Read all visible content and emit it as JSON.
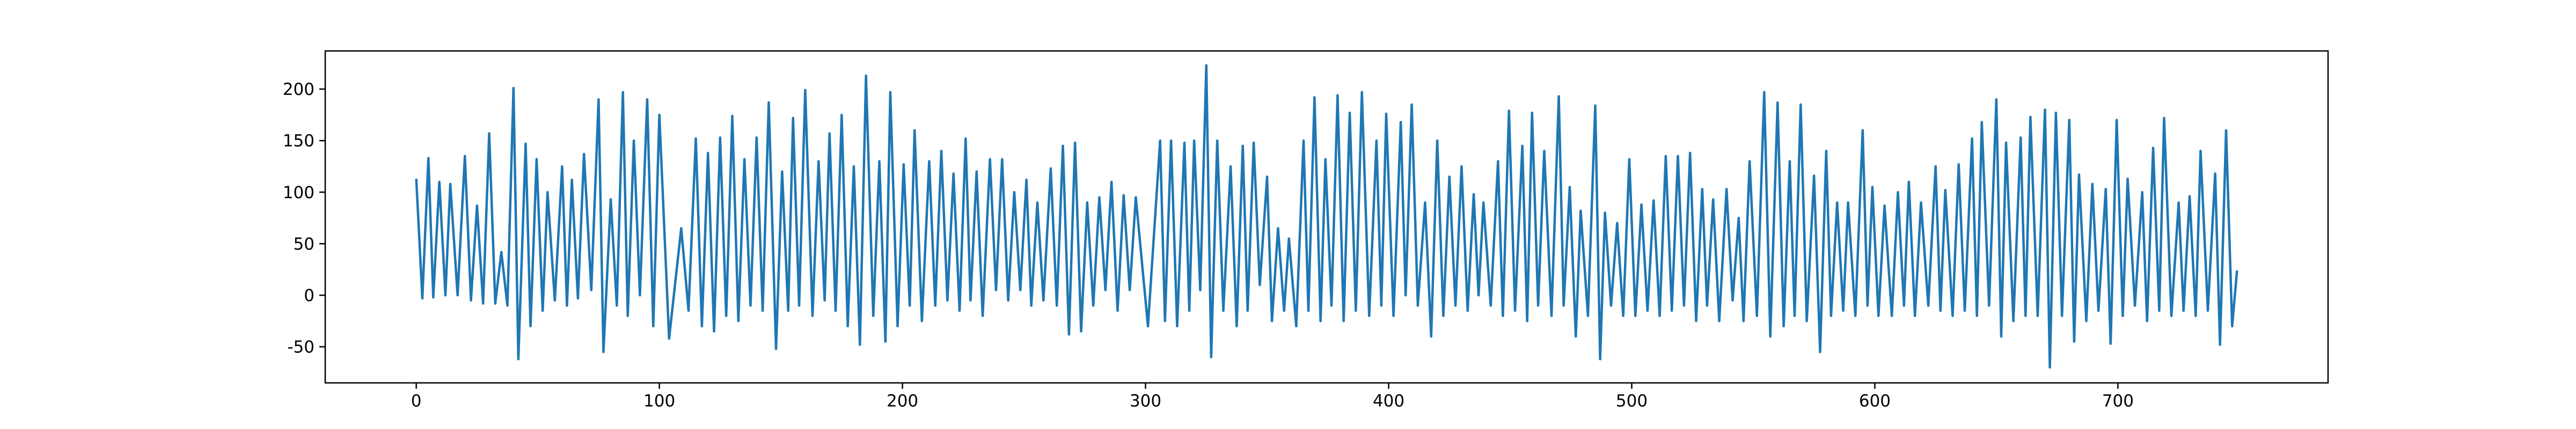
{
  "chart_data": {
    "type": "line",
    "color": "#1f77b4",
    "xlim": [
      -37.45,
      786.45
    ],
    "ylim": [
      -85,
      237
    ],
    "xticks": [
      0,
      100,
      200,
      300,
      400,
      500,
      600,
      700
    ],
    "yticks": [
      -50,
      0,
      50,
      100,
      150,
      200
    ],
    "x": [
      0,
      2.5,
      5,
      7,
      9.5,
      12,
      14,
      17,
      20,
      22.5,
      25,
      27.5,
      30,
      32.5,
      35,
      37.5,
      40,
      42,
      45,
      47,
      49.5,
      52,
      54,
      57,
      60,
      62,
      64,
      66.5,
      69,
      72,
      75,
      77,
      80,
      82.5,
      85,
      87,
      89.5,
      92,
      95,
      97.5,
      100,
      104,
      109,
      112,
      115,
      117.5,
      120,
      122.5,
      125,
      127.5,
      130,
      132.5,
      135,
      137.5,
      140,
      142.5,
      145,
      148,
      150.5,
      153,
      155,
      157.5,
      160,
      163,
      165.5,
      168,
      170,
      172.5,
      175,
      177.5,
      180,
      182.5,
      185,
      188,
      190.5,
      193,
      195,
      198,
      200.5,
      203,
      205,
      208,
      211,
      213.5,
      216,
      218.5,
      221,
      223.5,
      226,
      228,
      230.5,
      233,
      236,
      238.5,
      241,
      243.5,
      246,
      248.5,
      251,
      253,
      255.5,
      258,
      261,
      263.5,
      266,
      268.5,
      271,
      273.5,
      276,
      278.5,
      281,
      283.5,
      286,
      288.5,
      291,
      293.5,
      296,
      301,
      306,
      308,
      310.5,
      313,
      316,
      318,
      320,
      322.5,
      325,
      327,
      329.5,
      332,
      335,
      337.5,
      340,
      342,
      344.5,
      347,
      350,
      352,
      354.5,
      357,
      359,
      362,
      365,
      367,
      369.5,
      372,
      374,
      376.5,
      379,
      381.5,
      384,
      386.5,
      389,
      392,
      395,
      397,
      399,
      402,
      405,
      407,
      409.5,
      412,
      415,
      417.5,
      420,
      422.5,
      425,
      427.5,
      430,
      432.5,
      435,
      437,
      439,
      442,
      445,
      447,
      449.5,
      452,
      455,
      457,
      459,
      461.5,
      464,
      467,
      470,
      472,
      474.5,
      477,
      479,
      482,
      485,
      487,
      489,
      491.5,
      494,
      496.5,
      499,
      501.5,
      504,
      506.5,
      509,
      511.5,
      514,
      516.5,
      519,
      521.5,
      524,
      526.5,
      529,
      531,
      533.5,
      536,
      539,
      541.5,
      544,
      546,
      548.5,
      551.5,
      554.5,
      557,
      560,
      562.5,
      565,
      567,
      569.5,
      572,
      575,
      577.5,
      580,
      582,
      584.5,
      587,
      589,
      592,
      595,
      597,
      599,
      601.5,
      604,
      607,
      609.5,
      612,
      614,
      616.5,
      619,
      622,
      625,
      627,
      629,
      632,
      634.5,
      637,
      640,
      642,
      644,
      647,
      650,
      652,
      654,
      657,
      660,
      662,
      664,
      667,
      670,
      672,
      674.5,
      677,
      680,
      682,
      684,
      687,
      689.5,
      692,
      695,
      697,
      699.5,
      702,
      704,
      707,
      710,
      712,
      714.5,
      717,
      719,
      722,
      725,
      727,
      729.5,
      732,
      734,
      737,
      740,
      742,
      744.5,
      747,
      749
    ],
    "values": [
      113,
      -3,
      133,
      -2,
      110,
      0,
      108,
      0,
      135,
      -5,
      87,
      -8,
      157,
      -8,
      42,
      -10,
      201,
      -62,
      147,
      -30,
      132,
      -15,
      100,
      -5,
      125,
      -10,
      112,
      -3,
      137,
      5,
      190,
      -55,
      93,
      -10,
      197,
      -20,
      150,
      0,
      190,
      -30,
      175,
      -42,
      65,
      -15,
      152,
      -30,
      138,
      -35,
      153,
      -20,
      174,
      -25,
      132,
      -10,
      153,
      -15,
      187,
      -52,
      120,
      -15,
      172,
      -10,
      199,
      -20,
      130,
      -5,
      157,
      -15,
      175,
      -30,
      125,
      -48,
      213,
      -20,
      130,
      -45,
      197,
      -30,
      127,
      -10,
      160,
      -25,
      130,
      -10,
      140,
      -5,
      118,
      -15,
      152,
      -5,
      120,
      -20,
      132,
      5,
      132,
      -5,
      100,
      5,
      112,
      -10,
      90,
      -5,
      123,
      -10,
      145,
      -38,
      148,
      -35,
      90,
      -10,
      95,
      5,
      110,
      -15,
      97,
      5,
      95,
      -30,
      150,
      -25,
      150,
      -30,
      148,
      -15,
      150,
      5,
      223,
      -60,
      150,
      -15,
      125,
      -30,
      145,
      -15,
      148,
      10,
      115,
      -25,
      65,
      -15,
      55,
      -30,
      150,
      -15,
      192,
      -25,
      132,
      -10,
      194,
      -25,
      177,
      -15,
      197,
      -20,
      150,
      -10,
      176,
      -20,
      168,
      0,
      185,
      -10,
      90,
      -40,
      150,
      -20,
      115,
      -10,
      125,
      -15,
      98,
      0,
      90,
      -10,
      130,
      -20,
      179,
      -15,
      145,
      -25,
      177,
      -10,
      140,
      -20,
      193,
      -10,
      105,
      -40,
      82,
      -20,
      184,
      -62,
      80,
      -10,
      70,
      -20,
      132,
      -20,
      88,
      -15,
      92,
      -20,
      135,
      -15,
      135,
      -10,
      138,
      -25,
      103,
      -10,
      93,
      -25,
      103,
      -5,
      75,
      -25,
      130,
      -20,
      197,
      -40,
      187,
      -30,
      130,
      -20,
      185,
      -25,
      116,
      -55,
      140,
      -20,
      90,
      -15,
      90,
      -20,
      160,
      -10,
      105,
      -20,
      87,
      -20,
      100,
      -10,
      110,
      -20,
      90,
      -10,
      125,
      -15,
      102,
      -20,
      127,
      -15,
      152,
      -20,
      168,
      -10,
      190,
      -40,
      148,
      -25,
      153,
      -20,
      173,
      -20,
      180,
      -70,
      177,
      -20,
      170,
      -45,
      117,
      -25,
      108,
      -15,
      103,
      -47,
      170,
      -20,
      113,
      -10,
      100,
      -25,
      143,
      -15,
      172,
      -20,
      90,
      -15,
      96,
      -20,
      140,
      -15,
      118,
      -48,
      160,
      -30,
      24
    ]
  }
}
